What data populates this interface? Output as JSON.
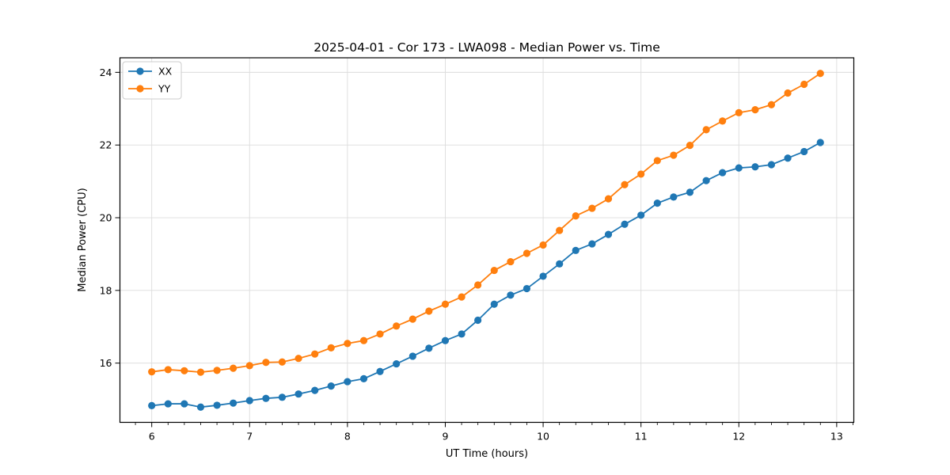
{
  "chart_data": {
    "type": "line",
    "title": "2025-04-01 - Cor 173 - LWA098 - Median Power vs. Time",
    "xlabel": "UT Time (hours)",
    "ylabel": "Median Power (CPU)",
    "xlim": [
      5.675,
      13.175
    ],
    "ylim": [
      14.37,
      24.4
    ],
    "xticks": [
      6,
      7,
      8,
      9,
      10,
      11,
      12,
      13
    ],
    "yticks": [
      16,
      18,
      20,
      22,
      24
    ],
    "x_minor_interval_hours": 0.1667,
    "grid": true,
    "grid_color": "#dcdcdc",
    "background_color": "#ffffff",
    "spine_color": "#000000",
    "legend_position": "upper-left",
    "x": [
      6,
      6.167,
      6.333,
      6.5,
      6.667,
      6.833,
      7,
      7.167,
      7.333,
      7.5,
      7.667,
      7.833,
      8,
      8.167,
      8.333,
      8.5,
      8.667,
      8.833,
      9,
      9.167,
      9.333,
      9.5,
      9.667,
      9.833,
      10,
      10.167,
      10.333,
      10.5,
      10.667,
      10.833,
      11,
      11.167,
      11.333,
      11.5,
      11.667,
      11.833,
      12,
      12.167,
      12.333,
      12.5,
      12.667,
      12.833
    ],
    "series": [
      {
        "name": "XX",
        "color": "#1f77b4",
        "values": [
          14.83,
          14.88,
          14.88,
          14.79,
          14.84,
          14.9,
          14.97,
          15.03,
          15.06,
          15.15,
          15.25,
          15.37,
          15.49,
          15.57,
          15.77,
          15.98,
          16.19,
          16.41,
          16.62,
          16.8,
          17.18,
          17.62,
          17.87,
          18.05,
          18.39,
          18.73,
          19.1,
          19.28,
          19.54,
          19.82,
          20.07,
          20.4,
          20.57,
          20.7,
          21.02,
          21.24,
          21.37,
          21.4,
          21.46,
          21.64,
          21.82,
          22.07
        ]
      },
      {
        "name": "YY",
        "color": "#ff7f0e",
        "values": [
          15.76,
          15.82,
          15.79,
          15.75,
          15.8,
          15.86,
          15.93,
          16.02,
          16.03,
          16.13,
          16.25,
          16.42,
          16.54,
          16.62,
          16.8,
          17.02,
          17.21,
          17.43,
          17.62,
          17.82,
          18.15,
          18.55,
          18.79,
          19.02,
          19.25,
          19.65,
          20.05,
          20.26,
          20.52,
          20.91,
          21.2,
          21.57,
          21.72,
          21.99,
          22.42,
          22.66,
          22.89,
          22.97,
          23.11,
          23.43,
          23.67,
          23.97
        ]
      }
    ],
    "legend": {
      "entries": [
        {
          "label": "XX",
          "color": "#1f77b4"
        },
        {
          "label": "YY",
          "color": "#ff7f0e"
        }
      ]
    }
  }
}
